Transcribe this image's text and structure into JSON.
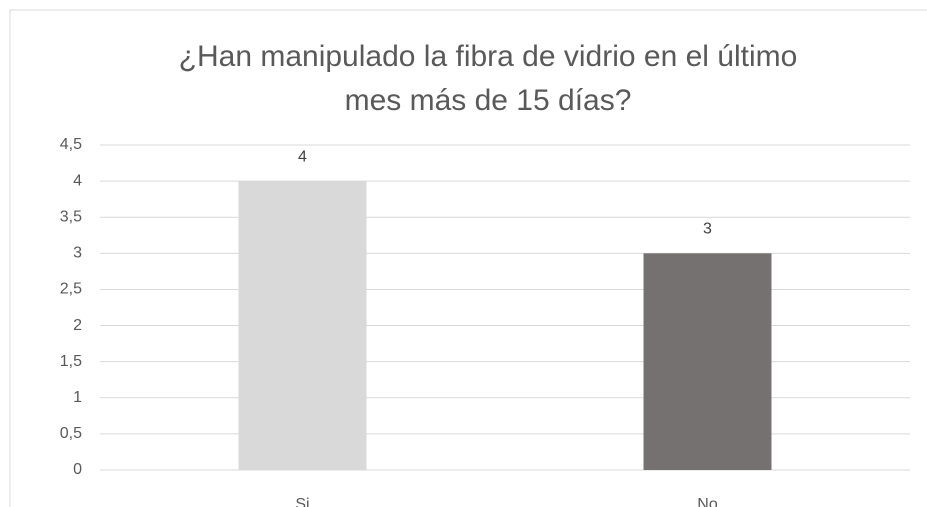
{
  "chart_data": {
    "type": "bar",
    "title": [
      "¿Han manipulado la fibra de vidrio en el último",
      "mes más de 15 días?"
    ],
    "categories": [
      "Si",
      "No"
    ],
    "values": [
      4,
      3
    ],
    "colors": [
      "#d9d9d9",
      "#767171"
    ],
    "ylim": [
      0,
      4.5
    ],
    "yticks": [
      0,
      {
        "value": 0.5,
        "label": "0,5"
      },
      1,
      {
        "value": 1.5,
        "label": "1,5"
      },
      2,
      {
        "value": 2.5,
        "label": "2,5"
      },
      3,
      {
        "value": 3.5,
        "label": "3,5"
      },
      4,
      {
        "value": 4.5,
        "label": "4,5"
      }
    ],
    "grid": true
  }
}
